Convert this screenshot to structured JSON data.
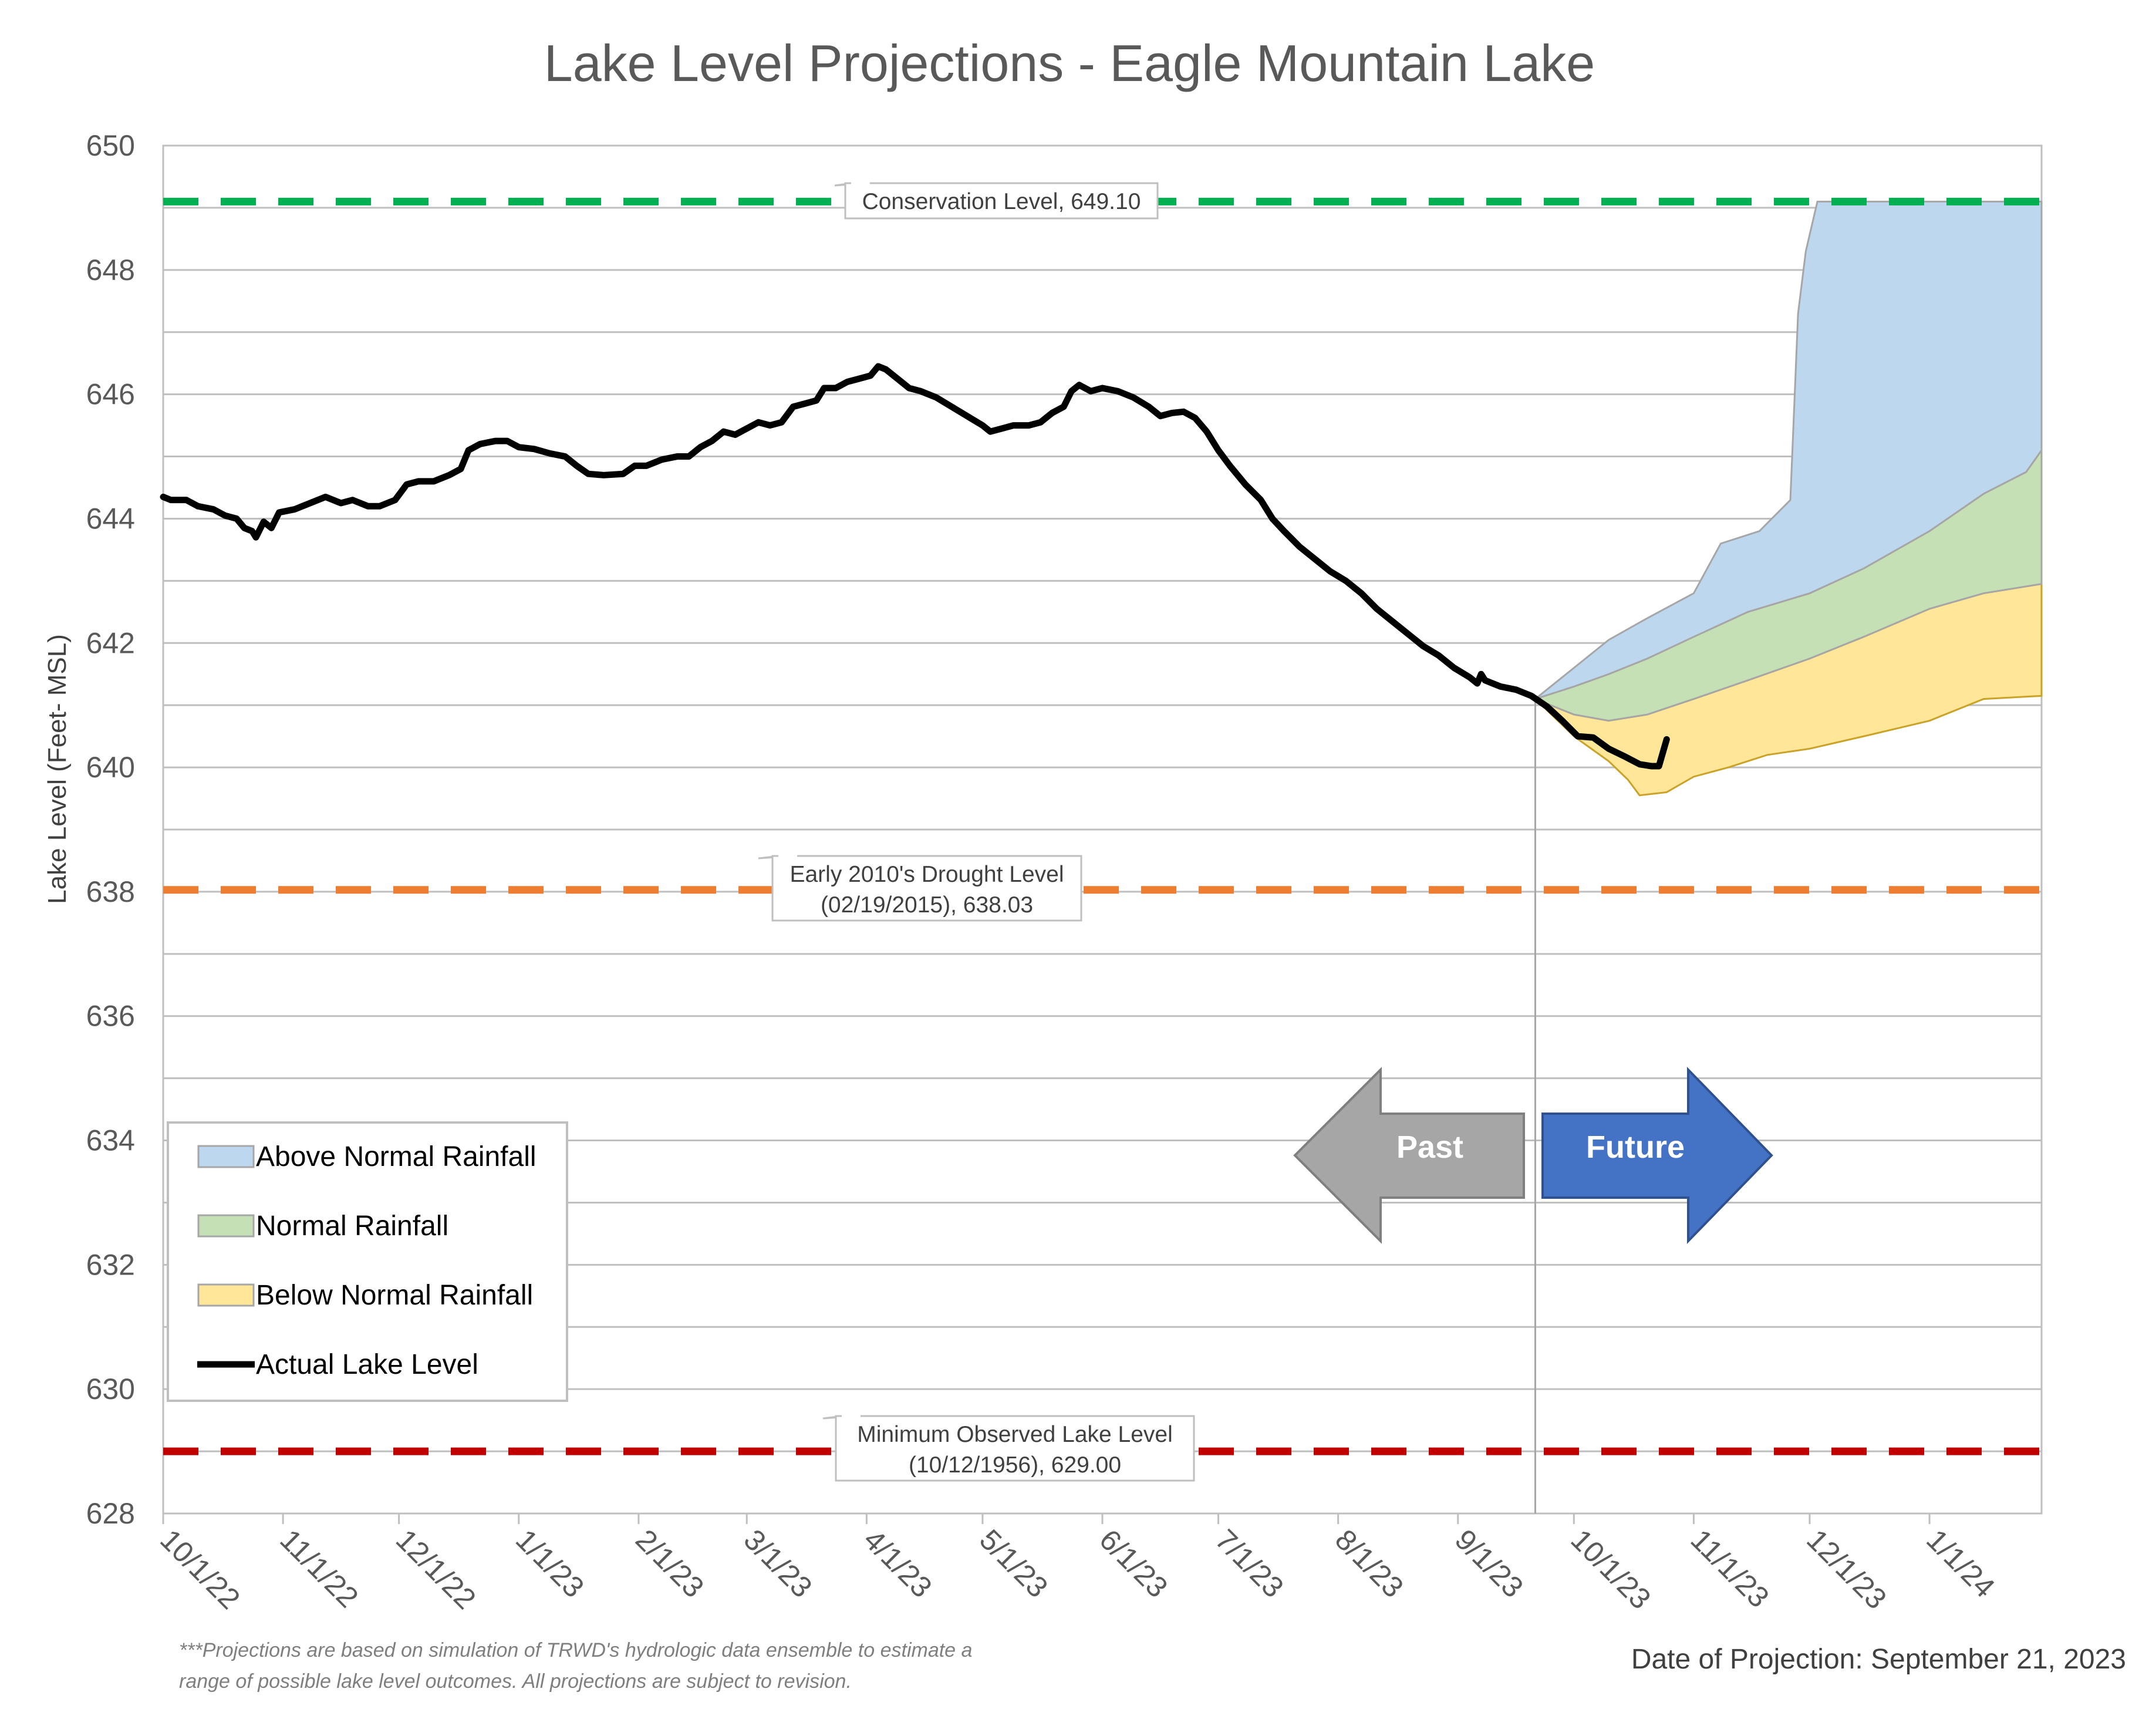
{
  "chart_data": {
    "type": "line",
    "title": "Lake Level Projections - Eagle Mountain Lake",
    "ylabel": "Lake Level (Feet- MSL)",
    "xlabel": "",
    "ylim": [
      628,
      650
    ],
    "yticks": [
      628,
      630,
      632,
      634,
      636,
      638,
      640,
      642,
      644,
      646,
      648,
      650
    ],
    "xlim": [
      "2022-10-01",
      "2024-01-30"
    ],
    "xticks": [
      {
        "date": "2022-10-01",
        "label": "10/1/22"
      },
      {
        "date": "2022-11-01",
        "label": "11/1/22"
      },
      {
        "date": "2022-12-01",
        "label": "12/1/22"
      },
      {
        "date": "2023-01-01",
        "label": "1/1/23"
      },
      {
        "date": "2023-02-01",
        "label": "2/1/23"
      },
      {
        "date": "2023-03-01",
        "label": "3/1/23"
      },
      {
        "date": "2023-04-01",
        "label": "4/1/23"
      },
      {
        "date": "2023-05-01",
        "label": "5/1/23"
      },
      {
        "date": "2023-06-01",
        "label": "6/1/23"
      },
      {
        "date": "2023-07-01",
        "label": "7/1/23"
      },
      {
        "date": "2023-08-01",
        "label": "8/1/23"
      },
      {
        "date": "2023-09-01",
        "label": "9/1/23"
      },
      {
        "date": "2023-10-01",
        "label": "10/1/23"
      },
      {
        "date": "2023-11-01",
        "label": "11/1/23"
      },
      {
        "date": "2023-12-01",
        "label": "12/1/23"
      },
      {
        "date": "2024-01-01",
        "label": "1/1/24"
      }
    ],
    "grid": true,
    "projection_date": "2023-09-21",
    "reference_lines": [
      {
        "value": 649.1,
        "color": "#00b050",
        "label": "Conservation Level, 649.10"
      },
      {
        "value": 638.03,
        "color": "#ed7d31",
        "label_lines": [
          "Early 2010's Drought Level",
          "(02/19/2015), 638.03"
        ]
      },
      {
        "value": 629.0,
        "color": "#c00000",
        "label_lines": [
          "Minimum Observed Lake Level",
          "(10/12/1956), 629.00"
        ]
      }
    ],
    "series": [
      {
        "name": "Actual Lake Level",
        "type": "line",
        "color": "#000000",
        "points": [
          [
            "2022-10-01",
            644.35
          ],
          [
            "2022-10-03",
            644.3
          ],
          [
            "2022-10-07",
            644.3
          ],
          [
            "2022-10-10",
            644.2
          ],
          [
            "2022-10-14",
            644.15
          ],
          [
            "2022-10-17",
            644.05
          ],
          [
            "2022-10-20",
            644.0
          ],
          [
            "2022-10-22",
            643.85
          ],
          [
            "2022-10-24",
            643.8
          ],
          [
            "2022-10-25",
            643.7
          ],
          [
            "2022-10-27",
            643.95
          ],
          [
            "2022-10-29",
            643.85
          ],
          [
            "2022-10-31",
            644.1
          ],
          [
            "2022-11-04",
            644.15
          ],
          [
            "2022-11-08",
            644.25
          ],
          [
            "2022-11-12",
            644.35
          ],
          [
            "2022-11-16",
            644.25
          ],
          [
            "2022-11-19",
            644.3
          ],
          [
            "2022-11-23",
            644.2
          ],
          [
            "2022-11-26",
            644.2
          ],
          [
            "2022-11-30",
            644.3
          ],
          [
            "2022-12-03",
            644.55
          ],
          [
            "2022-12-06",
            644.6
          ],
          [
            "2022-12-10",
            644.6
          ],
          [
            "2022-12-14",
            644.7
          ],
          [
            "2022-12-17",
            644.8
          ],
          [
            "2022-12-19",
            645.1
          ],
          [
            "2022-12-22",
            645.2
          ],
          [
            "2022-12-26",
            645.25
          ],
          [
            "2022-12-29",
            645.25
          ],
          [
            "2023-01-01",
            645.15
          ],
          [
            "2023-01-05",
            645.12
          ],
          [
            "2023-01-09",
            645.05
          ],
          [
            "2023-01-13",
            645.0
          ],
          [
            "2023-01-16",
            644.85
          ],
          [
            "2023-01-19",
            644.72
          ],
          [
            "2023-01-23",
            644.7
          ],
          [
            "2023-01-28",
            644.72
          ],
          [
            "2023-01-31",
            644.85
          ],
          [
            "2023-02-03",
            644.85
          ],
          [
            "2023-02-07",
            644.95
          ],
          [
            "2023-02-11",
            645.0
          ],
          [
            "2023-02-14",
            645.0
          ],
          [
            "2023-02-17",
            645.15
          ],
          [
            "2023-02-20",
            645.25
          ],
          [
            "2023-02-23",
            645.4
          ],
          [
            "2023-02-26",
            645.35
          ],
          [
            "2023-03-01",
            645.45
          ],
          [
            "2023-03-04",
            645.55
          ],
          [
            "2023-03-07",
            645.5
          ],
          [
            "2023-03-10",
            645.55
          ],
          [
            "2023-03-13",
            645.8
          ],
          [
            "2023-03-16",
            645.85
          ],
          [
            "2023-03-19",
            645.9
          ],
          [
            "2023-03-21",
            646.1
          ],
          [
            "2023-03-24",
            646.1
          ],
          [
            "2023-03-27",
            646.2
          ],
          [
            "2023-03-30",
            646.25
          ],
          [
            "2023-04-02",
            646.3
          ],
          [
            "2023-04-04",
            646.45
          ],
          [
            "2023-04-06",
            646.4
          ],
          [
            "2023-04-10",
            646.2
          ],
          [
            "2023-04-12",
            646.1
          ],
          [
            "2023-04-15",
            646.05
          ],
          [
            "2023-04-19",
            645.95
          ],
          [
            "2023-04-23",
            645.8
          ],
          [
            "2023-04-27",
            645.65
          ],
          [
            "2023-05-01",
            645.5
          ],
          [
            "2023-05-03",
            645.4
          ],
          [
            "2023-05-06",
            645.45
          ],
          [
            "2023-05-09",
            645.5
          ],
          [
            "2023-05-13",
            645.5
          ],
          [
            "2023-05-16",
            645.55
          ],
          [
            "2023-05-19",
            645.7
          ],
          [
            "2023-05-22",
            645.8
          ],
          [
            "2023-05-24",
            646.05
          ],
          [
            "2023-05-26",
            646.15
          ],
          [
            "2023-05-29",
            646.05
          ],
          [
            "2023-06-01",
            646.1
          ],
          [
            "2023-06-05",
            646.05
          ],
          [
            "2023-06-09",
            645.95
          ],
          [
            "2023-06-13",
            645.8
          ],
          [
            "2023-06-16",
            645.65
          ],
          [
            "2023-06-19",
            645.7
          ],
          [
            "2023-06-22",
            645.72
          ],
          [
            "2023-06-25",
            645.62
          ],
          [
            "2023-06-28",
            645.4
          ],
          [
            "2023-07-01",
            645.1
          ],
          [
            "2023-07-04",
            644.85
          ],
          [
            "2023-07-08",
            644.55
          ],
          [
            "2023-07-12",
            644.3
          ],
          [
            "2023-07-15",
            644.0
          ],
          [
            "2023-07-18",
            643.8
          ],
          [
            "2023-07-22",
            643.55
          ],
          [
            "2023-07-26",
            643.35
          ],
          [
            "2023-07-30",
            643.15
          ],
          [
            "2023-08-03",
            643.0
          ],
          [
            "2023-08-07",
            642.8
          ],
          [
            "2023-08-11",
            642.55
          ],
          [
            "2023-08-15",
            642.35
          ],
          [
            "2023-08-19",
            642.15
          ],
          [
            "2023-08-23",
            641.95
          ],
          [
            "2023-08-27",
            641.8
          ],
          [
            "2023-08-31",
            641.6
          ],
          [
            "2023-09-04",
            641.45
          ],
          [
            "2023-09-06",
            641.35
          ],
          [
            "2023-09-07",
            641.5
          ],
          [
            "2023-09-08",
            641.4
          ],
          [
            "2023-09-12",
            641.3
          ],
          [
            "2023-09-16",
            641.25
          ],
          [
            "2023-09-20",
            641.15
          ],
          [
            "2023-09-24",
            640.98
          ],
          [
            "2023-09-28",
            640.75
          ],
          [
            "2023-10-02",
            640.5
          ],
          [
            "2023-10-06",
            640.48
          ],
          [
            "2023-10-10",
            640.3
          ],
          [
            "2023-10-14",
            640.18
          ],
          [
            "2023-10-18",
            640.05
          ],
          [
            "2023-10-21",
            640.02
          ],
          [
            "2023-10-23",
            640.02
          ],
          [
            "2023-10-25",
            640.45
          ]
        ]
      },
      {
        "name": "Below Normal Rainfall",
        "type": "band",
        "color": "#ffe699",
        "stroke": "#c9a227",
        "lower": [
          [
            "2023-09-21",
            641.1
          ],
          [
            "2023-10-01",
            640.5
          ],
          [
            "2023-10-10",
            640.1
          ],
          [
            "2023-10-15",
            639.8
          ],
          [
            "2023-10-18",
            639.55
          ],
          [
            "2023-10-25",
            639.6
          ],
          [
            "2023-11-01",
            639.85
          ],
          [
            "2023-11-10",
            640.0
          ],
          [
            "2023-11-20",
            640.2
          ],
          [
            "2023-12-01",
            640.3
          ],
          [
            "2023-12-15",
            640.5
          ],
          [
            "2024-01-01",
            640.75
          ],
          [
            "2024-01-15",
            641.1
          ],
          [
            "2024-01-30",
            641.15
          ]
        ],
        "upper": [
          [
            "2023-09-21",
            641.1
          ],
          [
            "2023-10-01",
            640.85
          ],
          [
            "2023-10-10",
            640.75
          ],
          [
            "2023-10-20",
            640.85
          ],
          [
            "2023-11-01",
            641.1
          ],
          [
            "2023-11-15",
            641.4
          ],
          [
            "2023-12-01",
            641.75
          ],
          [
            "2023-12-15",
            642.1
          ],
          [
            "2024-01-01",
            642.55
          ],
          [
            "2024-01-15",
            642.8
          ],
          [
            "2024-01-30",
            642.95
          ]
        ]
      },
      {
        "name": "Normal Rainfall",
        "type": "band",
        "color": "#c5e0b4",
        "stroke": "#a6a6a6",
        "lower": [
          [
            "2023-09-21",
            641.1
          ],
          [
            "2023-10-01",
            640.85
          ],
          [
            "2023-10-10",
            640.75
          ],
          [
            "2023-10-20",
            640.85
          ],
          [
            "2023-11-01",
            641.1
          ],
          [
            "2023-11-15",
            641.4
          ],
          [
            "2023-12-01",
            641.75
          ],
          [
            "2023-12-15",
            642.1
          ],
          [
            "2024-01-01",
            642.55
          ],
          [
            "2024-01-15",
            642.8
          ],
          [
            "2024-01-30",
            642.95
          ]
        ],
        "upper": [
          [
            "2023-09-21",
            641.1
          ],
          [
            "2023-10-01",
            641.3
          ],
          [
            "2023-10-10",
            641.5
          ],
          [
            "2023-10-20",
            641.75
          ],
          [
            "2023-11-01",
            642.1
          ],
          [
            "2023-11-15",
            642.5
          ],
          [
            "2023-12-01",
            642.8
          ],
          [
            "2023-12-15",
            643.2
          ],
          [
            "2024-01-01",
            643.8
          ],
          [
            "2024-01-15",
            644.4
          ],
          [
            "2024-01-26",
            644.75
          ],
          [
            "2024-01-30",
            645.1
          ]
        ]
      },
      {
        "name": "Above Normal Rainfall",
        "type": "band",
        "color": "#bdd7ee",
        "stroke": "#a6a6a6",
        "lower": [
          [
            "2023-09-21",
            641.1
          ],
          [
            "2023-10-01",
            641.3
          ],
          [
            "2023-10-10",
            641.5
          ],
          [
            "2023-10-20",
            641.75
          ],
          [
            "2023-11-01",
            642.1
          ],
          [
            "2023-11-15",
            642.5
          ],
          [
            "2023-12-01",
            642.8
          ],
          [
            "2023-12-15",
            643.2
          ],
          [
            "2024-01-01",
            643.8
          ],
          [
            "2024-01-15",
            644.4
          ],
          [
            "2024-01-26",
            644.75
          ],
          [
            "2024-01-30",
            645.1
          ]
        ],
        "upper": [
          [
            "2023-09-21",
            641.1
          ],
          [
            "2023-10-01",
            641.6
          ],
          [
            "2023-10-10",
            642.05
          ],
          [
            "2023-10-20",
            642.4
          ],
          [
            "2023-11-01",
            642.8
          ],
          [
            "2023-11-08",
            643.6
          ],
          [
            "2023-11-18",
            643.8
          ],
          [
            "2023-11-26",
            644.3
          ],
          [
            "2023-11-28",
            647.3
          ],
          [
            "2023-11-30",
            648.3
          ],
          [
            "2023-12-03",
            649.1
          ],
          [
            "2024-01-30",
            649.1
          ]
        ]
      }
    ],
    "legend": {
      "position": "left-bottom",
      "entries": [
        {
          "label": "Above Normal Rainfall",
          "color": "#bdd7ee",
          "kind": "swatch"
        },
        {
          "label": "Normal Rainfall",
          "color": "#c5e0b4",
          "kind": "swatch"
        },
        {
          "label": "Below Normal Rainfall",
          "color": "#ffe699",
          "kind": "swatch"
        },
        {
          "label": "Actual Lake Level",
          "color": "#000000",
          "kind": "line"
        }
      ]
    },
    "arrows": {
      "past": {
        "label": "Past",
        "color": "#a6a6a6"
      },
      "future": {
        "label": "Future",
        "color": "#4472c4"
      }
    },
    "footnote_lines": [
      "***Projections are based on simulation of TRWD's hydrologic data ensemble to estimate a",
      "range of possible lake level outcomes.  All projections are subject to revision."
    ],
    "projection_note": "Date of Projection: September 21, 2023"
  }
}
